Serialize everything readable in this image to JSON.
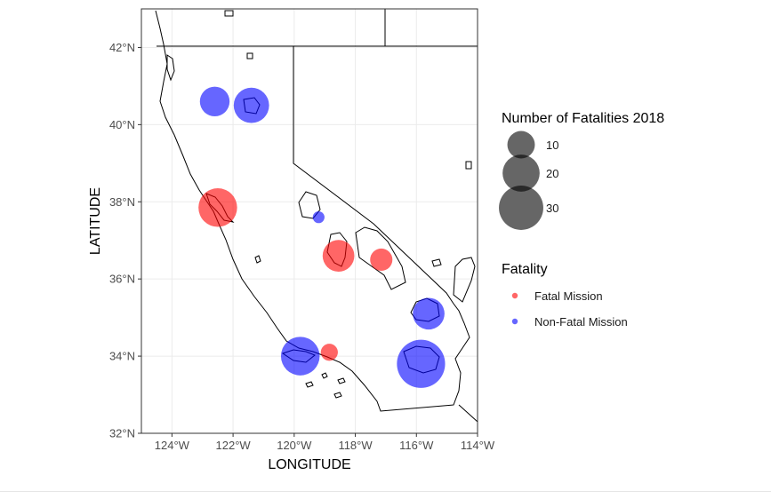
{
  "chart_data": {
    "type": "scatter",
    "subtype": "map",
    "title": "",
    "xlabel": "LONGITUDE",
    "ylabel": "LATITUDE",
    "xlim": [
      -125,
      -114
    ],
    "ylim": [
      32,
      43
    ],
    "x_ticks": [
      -124,
      -122,
      -120,
      -118,
      -116,
      -114
    ],
    "x_tick_labels": [
      "124°W",
      "122°W",
      "120°W",
      "118°W",
      "116°W",
      "114°W"
    ],
    "y_ticks": [
      32,
      34,
      36,
      38,
      40,
      42
    ],
    "y_tick_labels": [
      "32°N",
      "34°N",
      "36°N",
      "38°N",
      "40°N",
      "42°N"
    ],
    "grid": true,
    "legend_position": "right",
    "size_legend": {
      "title": "Number of Fatalities 2018",
      "values": [
        10,
        20,
        30
      ],
      "labels": [
        "10",
        "20",
        "30"
      ]
    },
    "color_legend": {
      "title": "Fatality",
      "entries": [
        {
          "label": "Fatal Mission",
          "color": "#ff0000"
        },
        {
          "label": "Non-Fatal Mission",
          "color": "#0000ff"
        }
      ]
    },
    "series": [
      {
        "name": "Fatal Mission",
        "color": "#ff0000",
        "points": [
          {
            "lon": -122.5,
            "lat": 37.85,
            "size": 22
          },
          {
            "lon": -118.55,
            "lat": 36.6,
            "size": 14
          },
          {
            "lon": -117.15,
            "lat": 36.5,
            "size": 6
          },
          {
            "lon": -118.85,
            "lat": 34.1,
            "size": 3
          }
        ]
      },
      {
        "name": "Non-Fatal Mission",
        "color": "#0000ff",
        "points": [
          {
            "lon": -122.6,
            "lat": 40.6,
            "size": 12
          },
          {
            "lon": -121.4,
            "lat": 40.5,
            "size": 18
          },
          {
            "lon": -119.2,
            "lat": 37.6,
            "size": 1
          },
          {
            "lon": -115.6,
            "lat": 35.1,
            "size": 14
          },
          {
            "lon": -119.8,
            "lat": 34.0,
            "size": 22
          },
          {
            "lon": -115.85,
            "lat": 33.8,
            "size": 36
          }
        ]
      }
    ]
  }
}
